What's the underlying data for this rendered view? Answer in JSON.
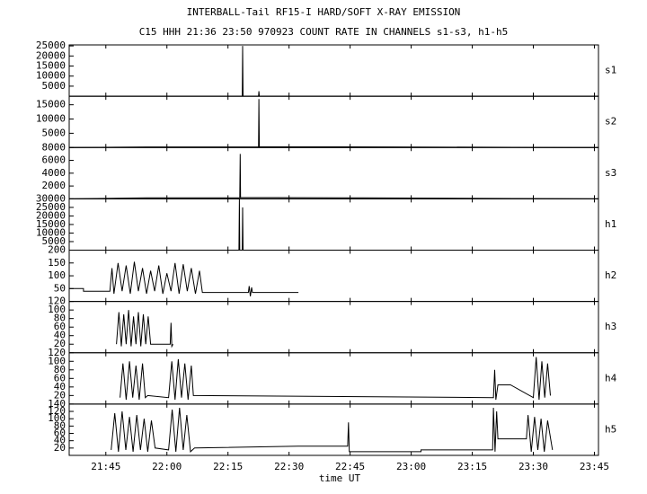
{
  "chart_data": {
    "type": "line",
    "title": "INTERBALL-Tail RF15-I HARD/SOFT X-RAY EMISSION",
    "subtitle": "C15 HHH 21:36 23:50 970923  COUNT RATE IN CHANNELS s1-s3, h1-h5",
    "xlabel": "time UT",
    "color": "#000000",
    "xlim": [
      1296,
      1426
    ],
    "xticks": [
      {
        "value": 1305,
        "label": "21:45"
      },
      {
        "value": 1320,
        "label": "22:00"
      },
      {
        "value": 1335,
        "label": "22:15"
      },
      {
        "value": 1350,
        "label": "22:30"
      },
      {
        "value": 1365,
        "label": "22:45"
      },
      {
        "value": 1380,
        "label": "23:00"
      },
      {
        "value": 1395,
        "label": "23:15"
      },
      {
        "value": 1410,
        "label": "23:30"
      },
      {
        "value": 1425,
        "label": "23:45"
      }
    ],
    "series": [
      {
        "name": "s1",
        "ylim": [
          0,
          25500
        ],
        "yticks": [
          5000,
          10000,
          15000,
          20000,
          25000
        ],
        "x": [
          1296,
          1338.5,
          1338.6,
          1338.7,
          1342.5,
          1342.6,
          1342.7,
          1426
        ],
        "values": [
          0,
          0,
          25000,
          0,
          0,
          2500,
          0,
          0
        ]
      },
      {
        "name": "s2",
        "ylim": [
          0,
          18000
        ],
        "yticks": [
          5000,
          10000,
          15000
        ],
        "x": [
          1296,
          1315,
          1342.5,
          1342.6,
          1342.7,
          1376,
          1426
        ],
        "values": [
          0,
          200,
          200,
          17000,
          250,
          200,
          0
        ]
      },
      {
        "name": "s3",
        "ylim": [
          0,
          8000
        ],
        "yticks": [
          2000,
          4000,
          6000,
          8000
        ],
        "x": [
          1296,
          1315,
          1337.9,
          1338,
          1338.1,
          1368,
          1426
        ],
        "values": [
          0,
          150,
          150,
          7000,
          200,
          150,
          0
        ]
      },
      {
        "name": "h1",
        "ylim": [
          0,
          30000
        ],
        "yticks": [
          5000,
          10000,
          15000,
          20000,
          25000,
          30000
        ],
        "x": [
          1296,
          1337.7,
          1337.8,
          1337.9,
          1338.5,
          1338.6,
          1338.7,
          1426
        ],
        "values": [
          0,
          0,
          30000,
          0,
          0,
          25000,
          0,
          0
        ]
      },
      {
        "name": "h2",
        "ylim": [
          0,
          200
        ],
        "yticks": [
          50,
          100,
          150,
          200
        ],
        "x": [
          1296,
          1299.5,
          1299.5,
          1306,
          1306.5,
          1307,
          1308,
          1309,
          1310,
          1311,
          1312,
          1313,
          1314,
          1315,
          1316,
          1317,
          1318,
          1319,
          1320,
          1321,
          1322,
          1323,
          1324,
          1325,
          1326,
          1327,
          1328,
          1328.7,
          1340,
          1340.2,
          1340.5,
          1340.8,
          1341,
          1352.3
        ],
        "values": [
          50,
          50,
          40,
          40,
          130,
          30,
          150,
          40,
          140,
          30,
          155,
          40,
          130,
          30,
          120,
          40,
          140,
          30,
          110,
          40,
          150,
          30,
          145,
          40,
          130,
          30,
          120,
          35,
          35,
          60,
          20,
          55,
          35,
          35
        ]
      },
      {
        "name": "h3",
        "ylim": [
          0,
          120
        ],
        "yticks": [
          20,
          40,
          60,
          80,
          100,
          120
        ],
        "x": [
          1307.6,
          1308.2,
          1308.8,
          1309.4,
          1310,
          1310.6,
          1311.2,
          1311.8,
          1312.4,
          1313,
          1313.6,
          1314.2,
          1314.8,
          1315.4,
          1316,
          1320.8,
          1321,
          1321.2,
          1321.5
        ],
        "values": [
          20,
          95,
          15,
          90,
          20,
          100,
          15,
          85,
          20,
          95,
          15,
          90,
          20,
          85,
          20,
          20,
          70,
          15,
          20
        ]
      },
      {
        "name": "h4",
        "ylim": [
          0,
          120
        ],
        "yticks": [
          20,
          40,
          60,
          80,
          100,
          120
        ],
        "x": [
          1308.5,
          1309.2,
          1310,
          1310.8,
          1311.6,
          1312.4,
          1313.2,
          1314,
          1314.7,
          1315.3,
          1320.4,
          1321.2,
          1322,
          1322.8,
          1323.6,
          1324.4,
          1325.2,
          1326,
          1326.5,
          1400.2,
          1400.5,
          1400.8,
          1401.3,
          1404.4,
          1410,
          1410.7,
          1411.4,
          1412.1,
          1412.8,
          1413.5,
          1414.2
        ],
        "values": [
          15,
          95,
          10,
          100,
          15,
          90,
          10,
          95,
          15,
          20,
          15,
          100,
          10,
          105,
          15,
          95,
          10,
          90,
          20,
          15,
          80,
          10,
          45,
          45,
          15,
          110,
          10,
          100,
          15,
          95,
          20
        ]
      },
      {
        "name": "h5",
        "ylim": [
          0,
          140
        ],
        "yticks": [
          20,
          40,
          60,
          80,
          100,
          120,
          140
        ],
        "x": [
          1306.3,
          1307.2,
          1308.1,
          1309,
          1309.9,
          1310.8,
          1311.7,
          1312.6,
          1313.5,
          1314.4,
          1315.3,
          1316.2,
          1317.1,
          1320.4,
          1321.3,
          1322.2,
          1323.1,
          1324,
          1324.9,
          1325.8,
          1326.8,
          1352.3,
          1364.4,
          1364.6,
          1364.8,
          1365.1,
          1382.4,
          1382.4,
          1400,
          1400.2,
          1400.6,
          1401,
          1401.3,
          1408.3,
          1408.7,
          1409.5,
          1410.3,
          1411.1,
          1411.9,
          1412.7,
          1413.5,
          1414.7
        ],
        "values": [
          15,
          115,
          10,
          120,
          15,
          105,
          10,
          110,
          15,
          100,
          10,
          95,
          20,
          15,
          125,
          10,
          130,
          15,
          110,
          10,
          20,
          25,
          25,
          90,
          10,
          10,
          10,
          15,
          15,
          130,
          10,
          120,
          45,
          45,
          110,
          10,
          105,
          15,
          100,
          10,
          95,
          15
        ]
      }
    ]
  }
}
